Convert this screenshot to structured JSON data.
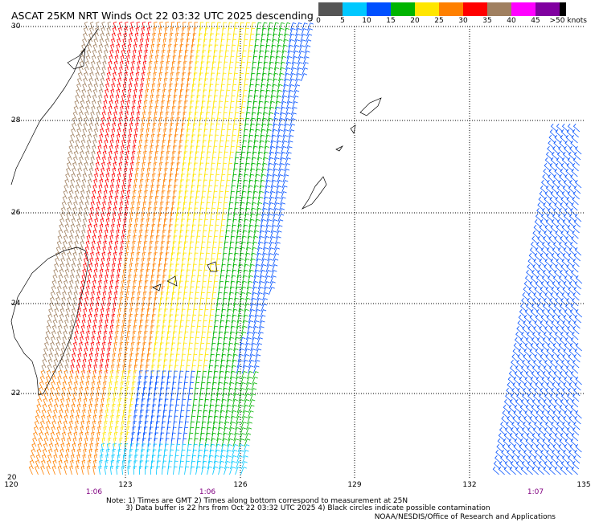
{
  "title": "ASCAT 25KM NRT Winds Oct 22 03:32 UTC 2025 descending",
  "colorbar": {
    "labels": [
      "0",
      "5",
      "10",
      "15",
      "20",
      "25",
      "30",
      "35",
      "40",
      "45",
      ">50 knots"
    ],
    "colors": [
      "#555555",
      "#00c8ff",
      "#0050ff",
      "#00b400",
      "#ffe600",
      "#ff8000",
      "#ff0000",
      "#a08060",
      "#ff00ff",
      "#8000a0",
      "#000000"
    ]
  },
  "lat_labels": [
    "30",
    "28",
    "26",
    "24",
    "22",
    "20"
  ],
  "lon_labels": [
    "120",
    "123",
    "126",
    "129",
    "132",
    "135"
  ],
  "time_labels": [
    "1:06",
    "1:06",
    "1:07"
  ],
  "notes": [
    "Note: 1) Times are GMT 2) Times along bottom correspond to measurement at 25N",
    "3) Data buffer is 22 hrs from Oct 22 03:32 UTC 2025 4) Black circles indicate possible contamination"
  ],
  "credit": "NOAA/NESDIS/Office of Research and Applications"
}
